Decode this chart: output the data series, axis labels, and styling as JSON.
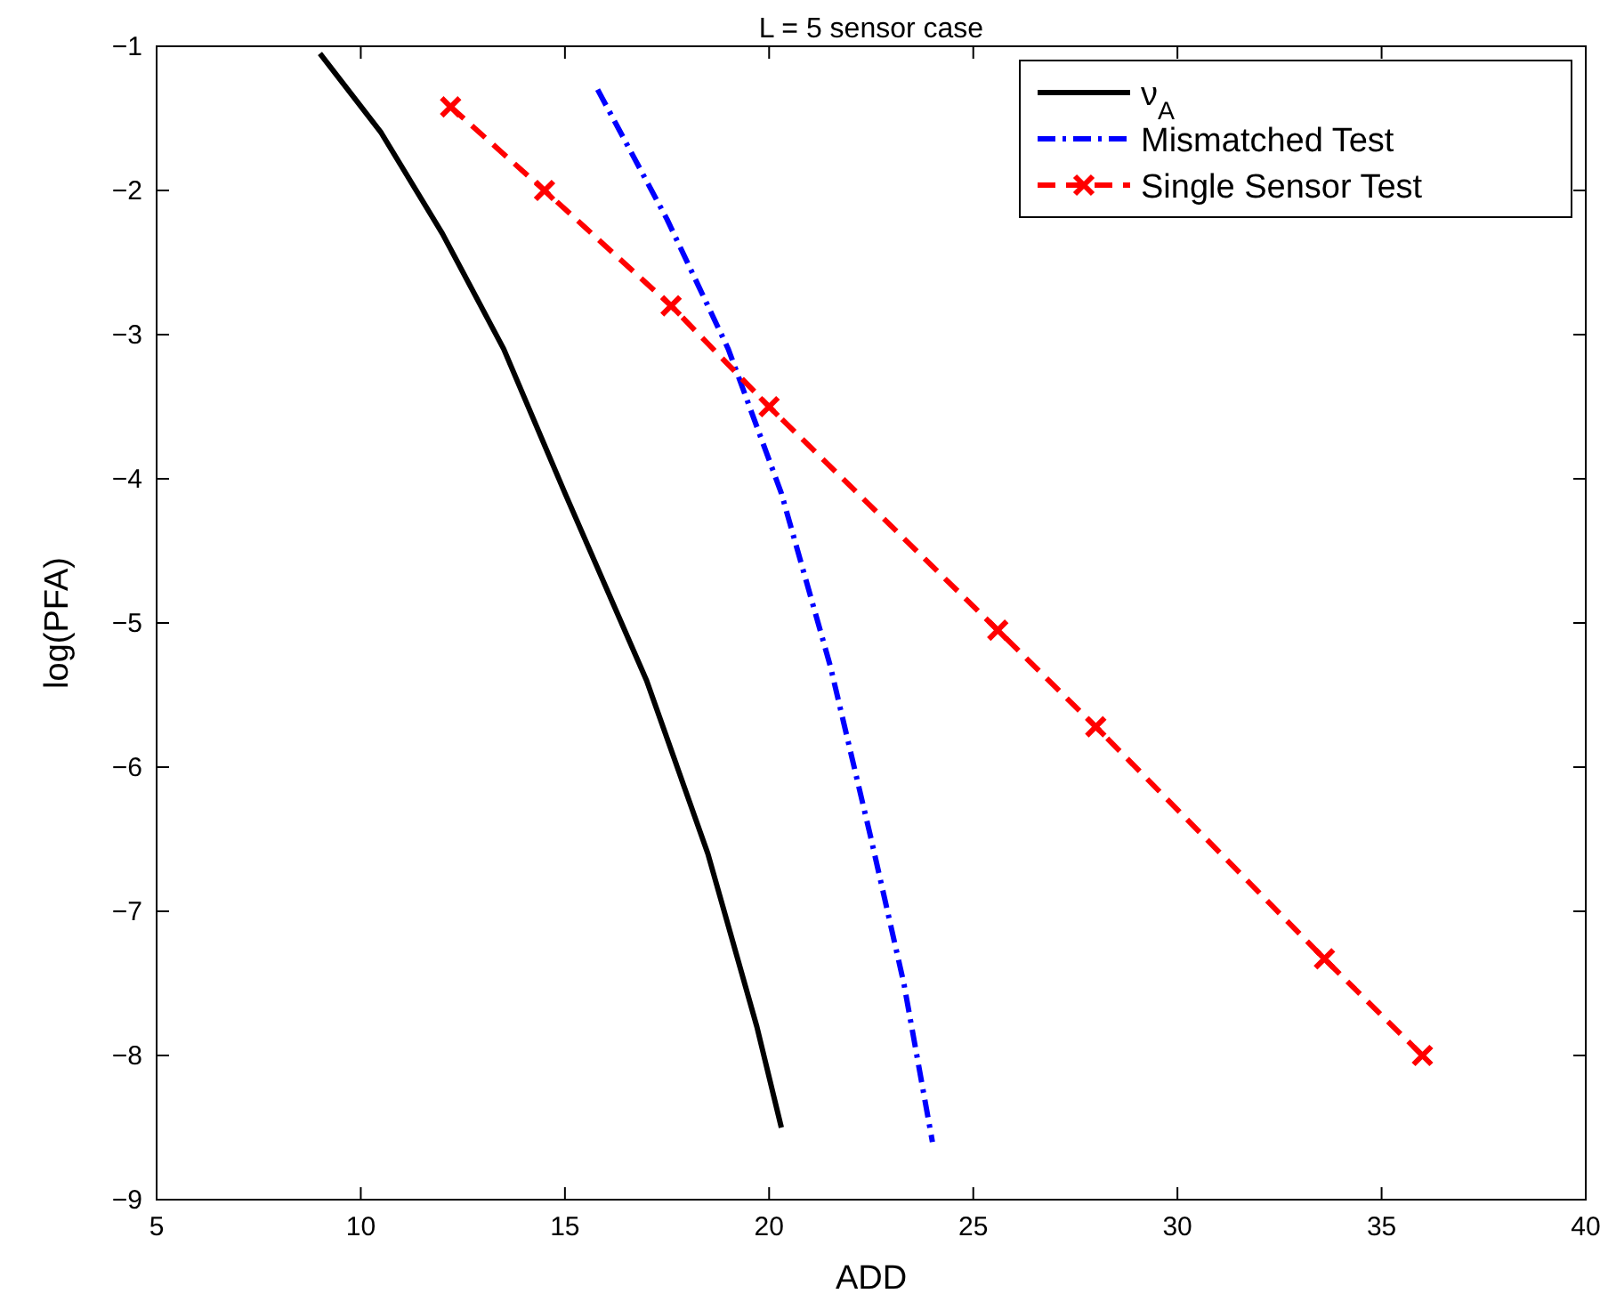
{
  "chart_data": {
    "type": "line",
    "title": "L = 5 sensor case",
    "xlabel": "ADD",
    "ylabel": "log(PFA)",
    "xlim": [
      5,
      40
    ],
    "ylim": [
      -9,
      -1
    ],
    "xticks": [
      5,
      10,
      15,
      20,
      25,
      30,
      35,
      40
    ],
    "yticks": [
      -9,
      -8,
      -7,
      -6,
      -5,
      -4,
      -3,
      -2,
      -1
    ],
    "legend": "top right",
    "grid": false,
    "series": [
      {
        "name": "ν$_{A}$",
        "color": "#000000",
        "line_style": "solid",
        "marker": "none",
        "x": [
          9,
          10.5,
          12,
          13.5,
          15,
          17,
          18.5,
          19.7,
          20.3
        ],
        "values": [
          -1.05,
          -1.6,
          -2.3,
          -3.1,
          -4.1,
          -5.4,
          -6.6,
          -7.8,
          -8.5
        ]
      },
      {
        "name": "Mismatched Test",
        "color": "#0000ff",
        "line_style": "dashdot",
        "marker": "none",
        "x": [
          15.8,
          17.5,
          19,
          20.3,
          21.5,
          22.5,
          23.3,
          24
        ],
        "values": [
          -1.3,
          -2.2,
          -3.1,
          -4.1,
          -5.3,
          -6.5,
          -7.5,
          -8.6
        ]
      },
      {
        "name": "Single Sensor Test",
        "color": "#ff0000",
        "line_style": "dashed",
        "marker": "cross",
        "x": [
          12.2,
          14.5,
          17.6,
          20,
          25.6,
          28,
          33.6,
          36
        ],
        "values": [
          -1.42,
          -2,
          -2.8,
          -3.5,
          -5.05,
          -5.72,
          -7.33,
          -8
        ]
      }
    ]
  }
}
